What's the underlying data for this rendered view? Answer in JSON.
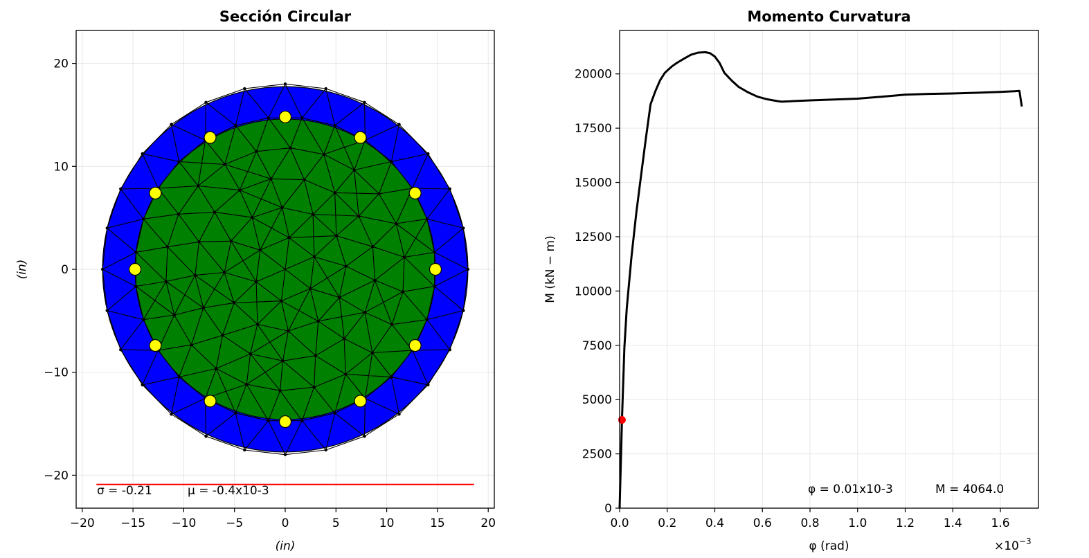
{
  "chart_data": [
    {
      "type": "scatter",
      "title": "Sección Circular",
      "xlabel": "(in)",
      "ylabel": "(in)",
      "xlim": [
        -20.6,
        20.6
      ],
      "ylim": [
        -23.2,
        23.2
      ],
      "xticks": [
        -20,
        -15,
        -10,
        -5,
        0,
        5,
        10,
        15,
        20
      ],
      "xtick_labels": [
        "−20",
        "−15",
        "−10",
        "−5",
        "0",
        "5",
        "10",
        "15",
        "20"
      ],
      "yticks": [
        -20,
        -10,
        0,
        10,
        20
      ],
      "ytick_labels": [
        "−20",
        "−10",
        "0",
        "10",
        "20"
      ],
      "grid": true,
      "outer_radius": 18,
      "core_radius": 14.8,
      "cover_color": "#0000ff",
      "core_color": "#008000",
      "bar_color": "#ffff00",
      "bars": [
        {
          "x": 0,
          "y": 14.8
        },
        {
          "x": 7.4,
          "y": 12.8
        },
        {
          "x": 12.8,
          "y": 7.4
        },
        {
          "x": 14.8,
          "y": 0
        },
        {
          "x": 12.8,
          "y": -7.4
        },
        {
          "x": 7.4,
          "y": -12.8
        },
        {
          "x": 0,
          "y": -14.8
        },
        {
          "x": -7.4,
          "y": -12.8
        },
        {
          "x": -12.8,
          "y": -7.4
        },
        {
          "x": -14.8,
          "y": 0
        },
        {
          "x": -12.8,
          "y": 7.4
        },
        {
          "x": -7.4,
          "y": 12.8
        }
      ],
      "stress_line": {
        "x": [
          -18.6,
          18.6
        ],
        "y": [
          -20.9,
          -20.9
        ],
        "color": "#ff0000"
      },
      "annotation": {
        "sigma": "σ = -0.21",
        "mu": "μ = -0.4x10-3"
      }
    },
    {
      "type": "line",
      "title": "Momento Curvatura",
      "xlabel": "φ (rad)",
      "ylabel": "M (kN − m)",
      "xlim": [
        0,
        1.76
      ],
      "ylim": [
        0,
        22000
      ],
      "x_scale_label": "×10",
      "x_scale_exp": "−3",
      "xticks": [
        0,
        0.2,
        0.4,
        0.6,
        0.8,
        1.0,
        1.2,
        1.4,
        1.6
      ],
      "xtick_labels": [
        "0.0",
        "0.2",
        "0.4",
        "0.6",
        "0.8",
        "1.0",
        "1.2",
        "1.4",
        "1.6"
      ],
      "yticks": [
        0,
        2500,
        5000,
        7500,
        10000,
        12500,
        15000,
        17500,
        20000
      ],
      "ytick_labels": [
        "0",
        "2500",
        "5000",
        "7500",
        "10000",
        "12500",
        "15000",
        "17500",
        "20000"
      ],
      "grid": true,
      "series": [
        {
          "color": "#000000",
          "x": [
            0,
            0.01,
            0.02,
            0.03,
            0.05,
            0.07,
            0.09,
            0.11,
            0.13,
            0.15,
            0.17,
            0.19,
            0.2,
            0.22,
            0.24,
            0.27,
            0.3,
            0.33,
            0.36,
            0.38,
            0.4,
            0.42,
            0.44,
            0.47,
            0.5,
            0.54,
            0.58,
            0.62,
            0.66,
            0.68,
            0.72,
            0.8,
            0.9,
            1.0,
            1.1,
            1.2,
            1.3,
            1.4,
            1.5,
            1.6,
            1.66,
            1.68,
            1.69
          ],
          "y": [
            0,
            4064,
            7400,
            9200,
            11600,
            13600,
            15300,
            17000,
            18600,
            19200,
            19700,
            20050,
            20150,
            20350,
            20500,
            20700,
            20880,
            20980,
            21000,
            20950,
            20800,
            20500,
            20050,
            19700,
            19400,
            19150,
            18950,
            18830,
            18750,
            18720,
            18740,
            18780,
            18820,
            18860,
            18950,
            19040,
            19080,
            19100,
            19130,
            19170,
            19200,
            19220,
            18500
          ]
        }
      ],
      "marker": {
        "x": 0.01,
        "y": 4064,
        "color": "#ff0000"
      },
      "annotation": {
        "phi": "φ = 0.01x10-3",
        "moment": "M = 4064.0"
      }
    }
  ]
}
